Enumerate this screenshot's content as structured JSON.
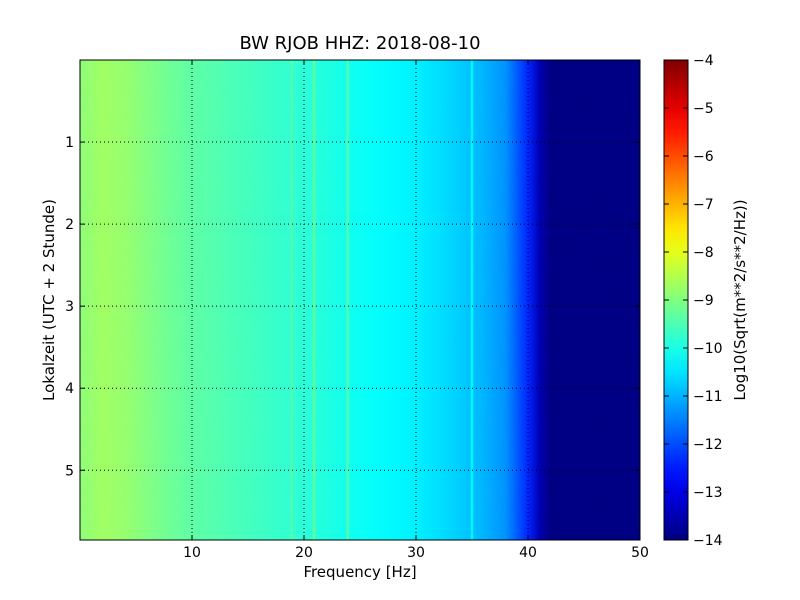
{
  "chart_data": {
    "type": "heatmap",
    "title": "BW RJOB HHZ: 2018-08-10",
    "xlabel": "Frequency [Hz]",
    "ylabel": "Lokalzeit (UTC + 2 Stunde)",
    "xlim": [
      0,
      50
    ],
    "ylim": [
      5.85,
      0
    ],
    "x_ticks": [
      10,
      20,
      30,
      40,
      50
    ],
    "x_tick_labels": [
      "10",
      "20",
      "30",
      "40",
      "50"
    ],
    "y_ticks": [
      1,
      2,
      3,
      4,
      5
    ],
    "y_tick_labels": [
      "1",
      "2",
      "3",
      "4",
      "5"
    ],
    "grid": true,
    "colormap": "jet",
    "colorbar": {
      "label": "Log10(Sqrt(m**2/s**2/Hz))",
      "range": [
        -14,
        -4
      ],
      "ticks": [
        -4,
        -5,
        -6,
        -7,
        -8,
        -9,
        -10,
        -11,
        -12,
        -13,
        -14
      ],
      "tick_labels": [
        "−4",
        "−5",
        "−6",
        "−7",
        "−8",
        "−9",
        "−10",
        "−11",
        "−12",
        "−13",
        "−14"
      ]
    },
    "frequency_profile": {
      "frequency_hz": [
        0,
        2,
        4,
        6,
        8,
        10,
        12,
        14,
        16,
        18,
        20,
        22,
        24,
        26,
        28,
        30,
        32,
        34,
        36,
        38,
        40,
        41,
        42,
        44,
        46,
        48,
        50
      ],
      "log_amplitude": [
        -8.9,
        -8.7,
        -8.8,
        -9.0,
        -9.2,
        -9.35,
        -9.45,
        -9.55,
        -9.65,
        -9.75,
        -9.85,
        -9.95,
        -10.1,
        -10.2,
        -10.3,
        -10.4,
        -10.55,
        -10.75,
        -11.0,
        -11.35,
        -12.4,
        -13.5,
        -14,
        -14,
        -14,
        -14,
        -14
      ]
    },
    "spectral_lines": [
      {
        "frequency_hz": 18.9,
        "log_amplitude": -9.4
      },
      {
        "frequency_hz": 20.9,
        "log_amplitude": -9.2
      },
      {
        "frequency_hz": 23.9,
        "log_amplitude": -9.3
      },
      {
        "frequency_hz": 35.0,
        "log_amplitude": -10.2
      }
    ]
  }
}
